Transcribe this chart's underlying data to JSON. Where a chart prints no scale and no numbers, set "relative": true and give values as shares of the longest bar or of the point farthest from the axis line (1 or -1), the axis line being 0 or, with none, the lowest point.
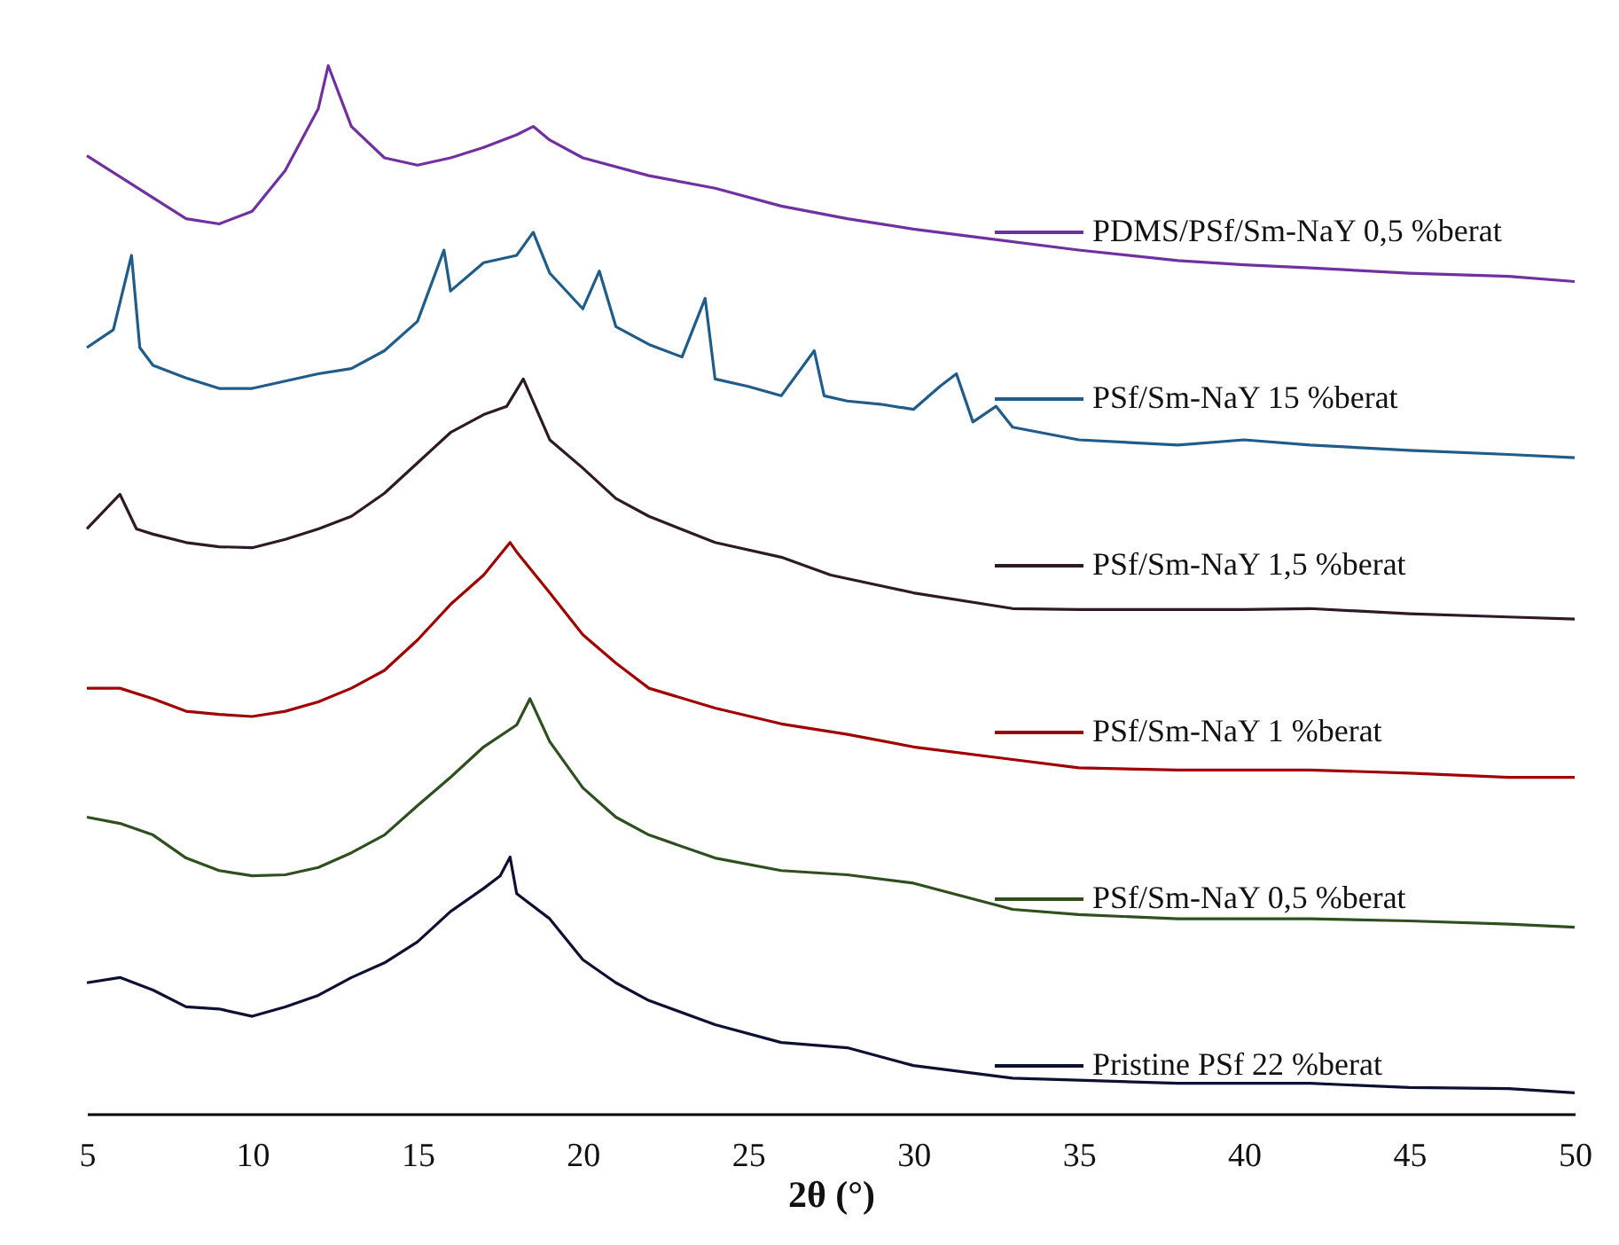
{
  "chart_data": {
    "type": "line",
    "xlabel": "2θ (°)",
    "relative": true,
    "xlim": [
      5,
      50
    ],
    "xticks": [
      5,
      10,
      15,
      20,
      25,
      30,
      35,
      40,
      45,
      50
    ],
    "legend": "right",
    "grid": false,
    "marker": "none",
    "line_style": "solid",
    "series": [
      {
        "name": "PDMS/PSf/Sm-NaY 0,5 %berat",
        "color": "#7030a0",
        "x": [
          5,
          8,
          9,
          10,
          11,
          12,
          12.3,
          13,
          14,
          15,
          16,
          17,
          18,
          18.5,
          19,
          20,
          22,
          24,
          26,
          28,
          30,
          32,
          35,
          38,
          40,
          42,
          45,
          48,
          50
        ],
        "values": [
          0.914,
          0.854,
          0.849,
          0.861,
          0.9,
          0.959,
          1,
          0.942,
          0.912,
          0.905,
          0.912,
          0.922,
          0.934,
          0.942,
          0.929,
          0.912,
          0.895,
          0.883,
          0.866,
          0.854,
          0.844,
          0.836,
          0.824,
          0.814,
          0.81,
          0.807,
          0.802,
          0.799,
          0.794
        ]
      },
      {
        "name": "PSf/Sm-NaY 15 %berat",
        "color": "#1f5c8a",
        "x": [
          5,
          5.8,
          6.35,
          6.6,
          7,
          8,
          9,
          10,
          11,
          12,
          13,
          14,
          15,
          15.8,
          16,
          17,
          18,
          18.5,
          19,
          20,
          20.5,
          21,
          22,
          23,
          23.7,
          24,
          25,
          26,
          27,
          27.3,
          28,
          29,
          30,
          30.8,
          31.3,
          31.8,
          32.5,
          33,
          35,
          38,
          40,
          42,
          45,
          48,
          50
        ],
        "values": [
          0.731,
          0.748,
          0.819,
          0.731,
          0.714,
          0.702,
          0.692,
          0.692,
          0.699,
          0.706,
          0.711,
          0.728,
          0.756,
          0.824,
          0.785,
          0.812,
          0.819,
          0.841,
          0.802,
          0.768,
          0.804,
          0.751,
          0.734,
          0.722,
          0.778,
          0.701,
          0.694,
          0.685,
          0.728,
          0.685,
          0.68,
          0.677,
          0.672,
          0.694,
          0.706,
          0.66,
          0.675,
          0.655,
          0.643,
          0.638,
          0.643,
          0.638,
          0.633,
          0.629,
          0.626
        ]
      },
      {
        "name": "PSf/Sm-NaY 1,5 %berat",
        "color": "#2e1a26",
        "x": [
          5,
          6,
          6.5,
          7,
          8,
          9,
          10,
          11,
          12,
          13,
          14,
          15,
          16,
          17,
          17.7,
          18.2,
          19,
          20,
          21,
          22,
          24,
          26,
          27.5,
          30,
          33,
          35,
          38,
          40,
          42,
          45,
          48,
          50
        ],
        "values": [
          0.558,
          0.591,
          0.558,
          0.553,
          0.545,
          0.541,
          0.54,
          0.548,
          0.558,
          0.57,
          0.592,
          0.621,
          0.65,
          0.667,
          0.675,
          0.701,
          0.643,
          0.616,
          0.587,
          0.57,
          0.545,
          0.531,
          0.514,
          0.497,
          0.482,
          0.481,
          0.481,
          0.481,
          0.482,
          0.477,
          0.474,
          0.472
        ]
      },
      {
        "name": "PSf/Sm-NaY 1 %berat",
        "color": "#a00000",
        "x": [
          5,
          6,
          7,
          8,
          9,
          10,
          11,
          12,
          13,
          14,
          15,
          16,
          17,
          17.8,
          18,
          19,
          20,
          21,
          22,
          24,
          26,
          28,
          30,
          33,
          35,
          38,
          40,
          42,
          45,
          48,
          50
        ],
        "values": [
          0.406,
          0.406,
          0.396,
          0.384,
          0.381,
          0.379,
          0.384,
          0.393,
          0.406,
          0.423,
          0.452,
          0.486,
          0.514,
          0.545,
          0.536,
          0.497,
          0.457,
          0.43,
          0.406,
          0.387,
          0.372,
          0.362,
          0.35,
          0.338,
          0.33,
          0.328,
          0.328,
          0.328,
          0.325,
          0.321,
          0.321
        ]
      },
      {
        "name": "PSf/Sm-NaY 0,5 %berat",
        "color": "#2f4f1f",
        "x": [
          5,
          6,
          7,
          8,
          9,
          10,
          11,
          12,
          13,
          14,
          15,
          16,
          17,
          18,
          18.4,
          19,
          20,
          21,
          22,
          24,
          26,
          28,
          30,
          33,
          35,
          38,
          40,
          42,
          45,
          48,
          50
        ],
        "values": [
          0.283,
          0.277,
          0.266,
          0.244,
          0.232,
          0.227,
          0.228,
          0.235,
          0.249,
          0.266,
          0.294,
          0.321,
          0.35,
          0.371,
          0.396,
          0.355,
          0.311,
          0.283,
          0.266,
          0.244,
          0.232,
          0.228,
          0.22,
          0.195,
          0.19,
          0.186,
          0.186,
          0.186,
          0.184,
          0.181,
          0.178
        ]
      },
      {
        "name": "Pristine PSf 22 %berat",
        "color": "#0d1033",
        "x": [
          5,
          6,
          7,
          8,
          9,
          10,
          11,
          12,
          13,
          14,
          15,
          16,
          17,
          17.5,
          17.8,
          18,
          19,
          20,
          21,
          22,
          24,
          26,
          28,
          30,
          33,
          35,
          38,
          40,
          42,
          45,
          48,
          50
        ],
        "values": [
          0.125,
          0.13,
          0.118,
          0.102,
          0.1,
          0.093,
          0.102,
          0.113,
          0.13,
          0.144,
          0.164,
          0.193,
          0.215,
          0.227,
          0.245,
          0.21,
          0.186,
          0.147,
          0.125,
          0.108,
          0.085,
          0.068,
          0.063,
          0.046,
          0.034,
          0.032,
          0.029,
          0.029,
          0.029,
          0.025,
          0.024,
          0.02
        ]
      }
    ]
  }
}
